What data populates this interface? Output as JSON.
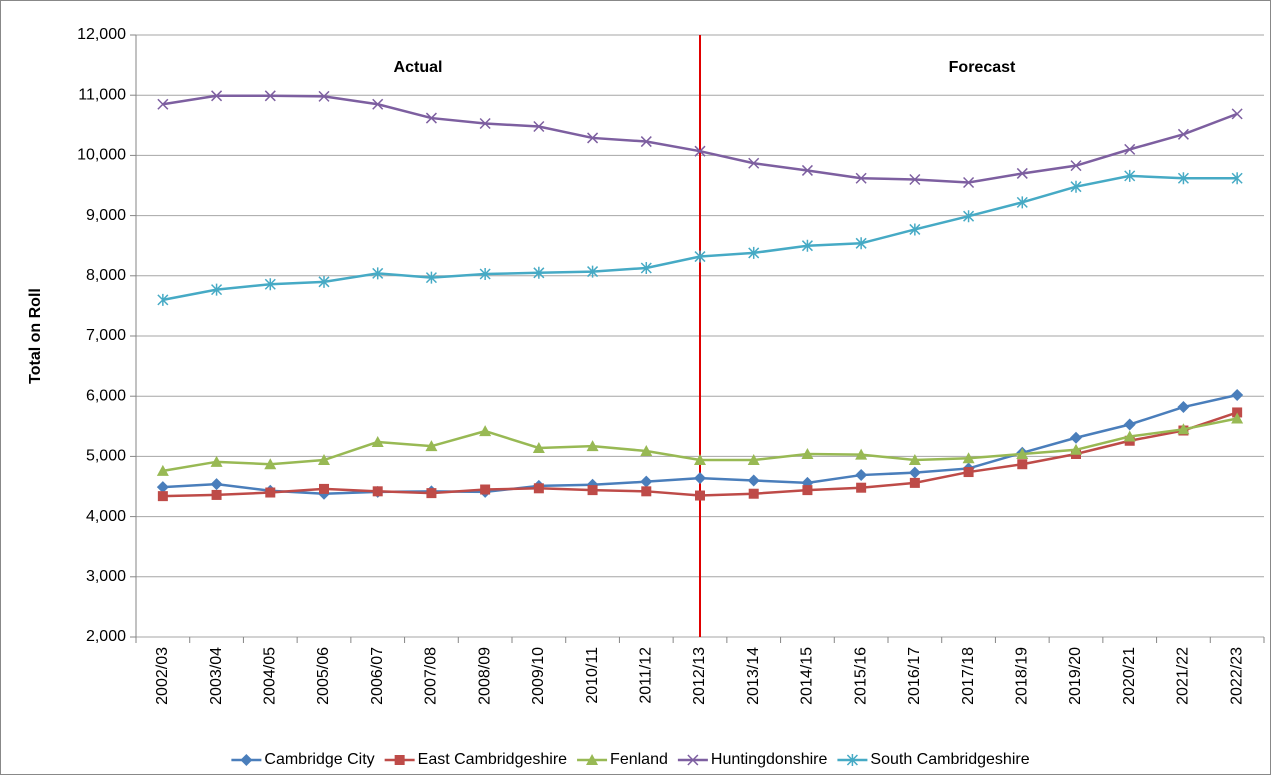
{
  "chart_data": {
    "type": "line",
    "y_label": "Total on Roll",
    "annotations": [
      "Actual",
      "Forecast"
    ],
    "divider": {
      "at": "2012/13",
      "color": "#e00000"
    },
    "categories": [
      "2002/03",
      "2003/04",
      "2004/05",
      "2005/06",
      "2006/07",
      "2007/08",
      "2008/09",
      "2009/10",
      "2010/11",
      "2011/12",
      "2012/13",
      "2013/14",
      "2014/15",
      "2015/16",
      "2016/17",
      "2017/18",
      "2018/19",
      "2019/20",
      "2020/21",
      "2021/22",
      "2022/23"
    ],
    "series": [
      {
        "name": "Cambridge City",
        "color": "#4a7ebb",
        "marker": "diamond",
        "values": [
          4490,
          4540,
          4430,
          4380,
          4410,
          4420,
          4410,
          4510,
          4530,
          4580,
          4640,
          4600,
          4560,
          4690,
          4730,
          4800,
          5060,
          5310,
          5530,
          5820,
          6020
        ]
      },
      {
        "name": "East Cambridgeshire",
        "color": "#be4b48",
        "marker": "square",
        "values": [
          4340,
          4360,
          4400,
          4460,
          4420,
          4390,
          4450,
          4470,
          4440,
          4420,
          4350,
          4380,
          4440,
          4480,
          4560,
          4740,
          4870,
          5040,
          5260,
          5430,
          5730
        ]
      },
      {
        "name": "Fenland",
        "color": "#98b954",
        "marker": "triangle",
        "values": [
          4760,
          4910,
          4870,
          4940,
          5240,
          5170,
          5420,
          5140,
          5170,
          5090,
          4940,
          4940,
          5040,
          5030,
          4940,
          4970,
          5040,
          5110,
          5330,
          5450,
          5630
        ]
      },
      {
        "name": "Huntingdonshire",
        "color": "#7d5fa0",
        "marker": "x",
        "values": [
          10850,
          10990,
          10990,
          10980,
          10850,
          10620,
          10530,
          10480,
          10290,
          10230,
          10070,
          9870,
          9750,
          9620,
          9600,
          9550,
          9700,
          9830,
          10100,
          10350,
          10690
        ]
      },
      {
        "name": "South Cambridgeshire",
        "color": "#46aac5",
        "marker": "star",
        "values": [
          7600,
          7770,
          7860,
          7900,
          8040,
          7970,
          8030,
          8050,
          8070,
          8130,
          8320,
          8380,
          8500,
          8540,
          8770,
          8990,
          9220,
          9480,
          9660,
          9620,
          9620
        ]
      }
    ],
    "ylim": [
      2000,
      12000
    ],
    "yticks": [
      {
        "value": 2000,
        "label": "2,000"
      },
      {
        "value": 3000,
        "label": "3,000"
      },
      {
        "value": 4000,
        "label": "4,000"
      },
      {
        "value": 5000,
        "label": "5,000"
      },
      {
        "value": 6000,
        "label": "6,000"
      },
      {
        "value": 7000,
        "label": "7,000"
      },
      {
        "value": 8000,
        "label": "8,000"
      },
      {
        "value": 9000,
        "label": "9,000"
      },
      {
        "value": 10000,
        "label": "10,000"
      },
      {
        "value": 11000,
        "label": "11,000"
      },
      {
        "value": 12000,
        "label": "12,000"
      }
    ],
    "grid": true,
    "legend": "bottom"
  }
}
